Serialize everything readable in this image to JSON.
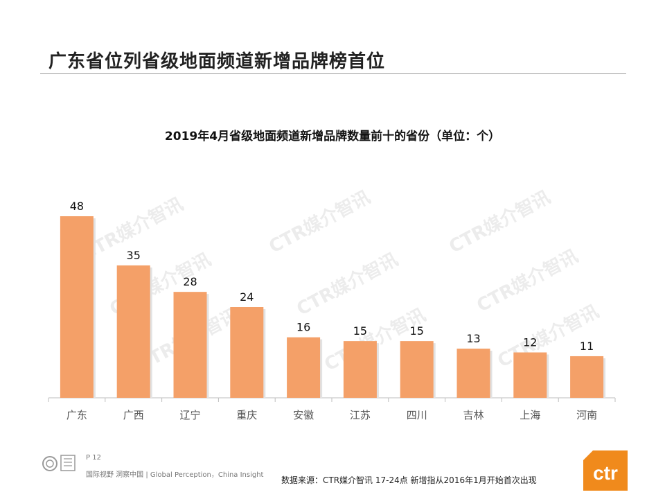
{
  "page": {
    "title": "广东省位列省级地面频道新增品牌榜首位"
  },
  "chart_data": {
    "type": "bar",
    "title": "2019年4月省级地面频道新增品牌数量前十的省份（单位：个）",
    "categories": [
      "广东",
      "广西",
      "辽宁",
      "重庆",
      "安徽",
      "江苏",
      "四川",
      "吉林",
      "上海",
      "河南"
    ],
    "values": [
      48,
      35,
      28,
      24,
      16,
      15,
      15,
      13,
      12,
      11
    ],
    "ylim": [
      0,
      48
    ],
    "grid": false,
    "data_labels": true,
    "bar_color": "#f4a068"
  },
  "watermark": {
    "text": "CTR媒介智讯"
  },
  "footer": {
    "page_number": "P 12",
    "slogan": "国际视野 洞察中国 | Global Perception，China Insight",
    "source": "数据来源：CTR媒介智讯    17-24点   新增指从2016年1月开始首次出现",
    "brand_logo_text": "ctr",
    "brand_color": "#f08a1c"
  }
}
